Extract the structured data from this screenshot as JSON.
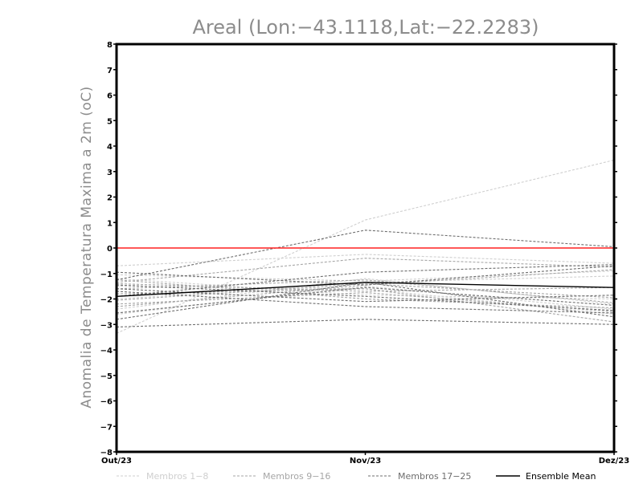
{
  "chart_data": {
    "type": "line",
    "title": "Areal (Lon:−43.1118,Lat:−22.2283)",
    "ylabel": "Anomalia de Temperatura Maxima a 2m (oC)",
    "xlabel": "",
    "categories": [
      "Out/23",
      "Nov/23",
      "Dez/23"
    ],
    "ylim": [
      -8,
      8
    ],
    "yticks": [
      8,
      7,
      6,
      5,
      4,
      3,
      2,
      1,
      0,
      -1,
      -2,
      -3,
      -4,
      -5,
      -6,
      -7,
      -8
    ],
    "ytick_labels": [
      "8",
      "7",
      "6",
      "5",
      "4",
      "3",
      "2",
      "1",
      "0",
      "−1",
      "−2",
      "−3",
      "−4",
      "−5",
      "−6",
      "−7",
      "−8"
    ],
    "reference_line": {
      "y": 0,
      "color": "#ff2020"
    },
    "colors": {
      "membros_1_8": "#cfcfcf",
      "membros_9_16": "#a6a6a6",
      "membros_17_25": "#6e6e6e",
      "ensemble_mean": "#000000"
    },
    "series": [
      {
        "name": "Membro 1",
        "group": "membros_1_8",
        "values": [
          -3.35,
          1.1,
          3.45
        ]
      },
      {
        "name": "Membro 2",
        "group": "membros_1_8",
        "values": [
          -0.7,
          -0.25,
          -0.6
        ]
      },
      {
        "name": "Membro 3",
        "group": "membros_1_8",
        "values": [
          -2.4,
          -1.2,
          -2.2
        ]
      },
      {
        "name": "Membro 4",
        "group": "membros_1_8",
        "values": [
          -1.5,
          -1.6,
          -2.6
        ]
      },
      {
        "name": "Membro 5",
        "group": "membros_1_8",
        "values": [
          -2.0,
          -1.35,
          -1.1
        ]
      },
      {
        "name": "Membro 6",
        "group": "membros_1_8",
        "values": [
          -1.2,
          -1.85,
          -2.0
        ]
      },
      {
        "name": "Membro 7",
        "group": "membros_1_8",
        "values": [
          -2.6,
          -1.5,
          -2.4
        ]
      },
      {
        "name": "Membro 8",
        "group": "membros_1_8",
        "values": [
          -1.05,
          -1.3,
          -0.9
        ]
      },
      {
        "name": "Membro 9",
        "group": "membros_9_16",
        "values": [
          -1.35,
          -0.4,
          -0.75
        ]
      },
      {
        "name": "Membro 10",
        "group": "membros_9_16",
        "values": [
          -2.2,
          -1.75,
          -2.5
        ]
      },
      {
        "name": "Membro 11",
        "group": "membros_9_16",
        "values": [
          -1.8,
          -1.6,
          -2.9
        ]
      },
      {
        "name": "Membro 12",
        "group": "membros_9_16",
        "values": [
          -1.6,
          -1.25,
          -2.15
        ]
      },
      {
        "name": "Membro 13",
        "group": "membros_9_16",
        "values": [
          -2.3,
          -1.45,
          -0.85
        ]
      },
      {
        "name": "Membro 14",
        "group": "membros_9_16",
        "values": [
          -1.25,
          -2.0,
          -2.35
        ]
      },
      {
        "name": "Membro 15",
        "group": "membros_9_16",
        "values": [
          -2.05,
          -1.4,
          -1.95
        ]
      },
      {
        "name": "Membro 16",
        "group": "membros_9_16",
        "values": [
          -1.4,
          -1.7,
          -1.55
        ]
      },
      {
        "name": "Membro 17",
        "group": "membros_17_25",
        "values": [
          -1.25,
          0.7,
          0.05
        ]
      },
      {
        "name": "Membro 18",
        "group": "membros_17_25",
        "values": [
          -3.1,
          -2.8,
          -3.0
        ]
      },
      {
        "name": "Membro 19",
        "group": "membros_17_25",
        "values": [
          -0.95,
          -1.45,
          -0.7
        ]
      },
      {
        "name": "Membro 20",
        "group": "membros_17_25",
        "values": [
          -2.8,
          -1.35,
          -2.7
        ]
      },
      {
        "name": "Membro 21",
        "group": "membros_17_25",
        "values": [
          -1.7,
          -2.3,
          -2.55
        ]
      },
      {
        "name": "Membro 22",
        "group": "membros_17_25",
        "values": [
          -2.55,
          -1.55,
          -2.25
        ]
      },
      {
        "name": "Membro 23",
        "group": "membros_17_25",
        "values": [
          -1.45,
          -1.9,
          -2.45
        ]
      },
      {
        "name": "Membro 24",
        "group": "membros_17_25",
        "values": [
          -1.9,
          -0.95,
          -0.65
        ]
      },
      {
        "name": "Membro 25",
        "group": "membros_17_25",
        "values": [
          -1.6,
          -2.1,
          -1.85
        ]
      },
      {
        "name": "Ensemble Mean",
        "group": "ensemble_mean",
        "values": [
          -1.9,
          -1.35,
          -1.55
        ]
      }
    ],
    "legend": [
      {
        "label": "Membros 1−8",
        "group": "membros_1_8"
      },
      {
        "label": "Membros 9−16",
        "group": "membros_9_16"
      },
      {
        "label": "Membros 17−25",
        "group": "membros_17_25"
      },
      {
        "label": "Ensemble Mean",
        "group": "ensemble_mean"
      }
    ]
  }
}
